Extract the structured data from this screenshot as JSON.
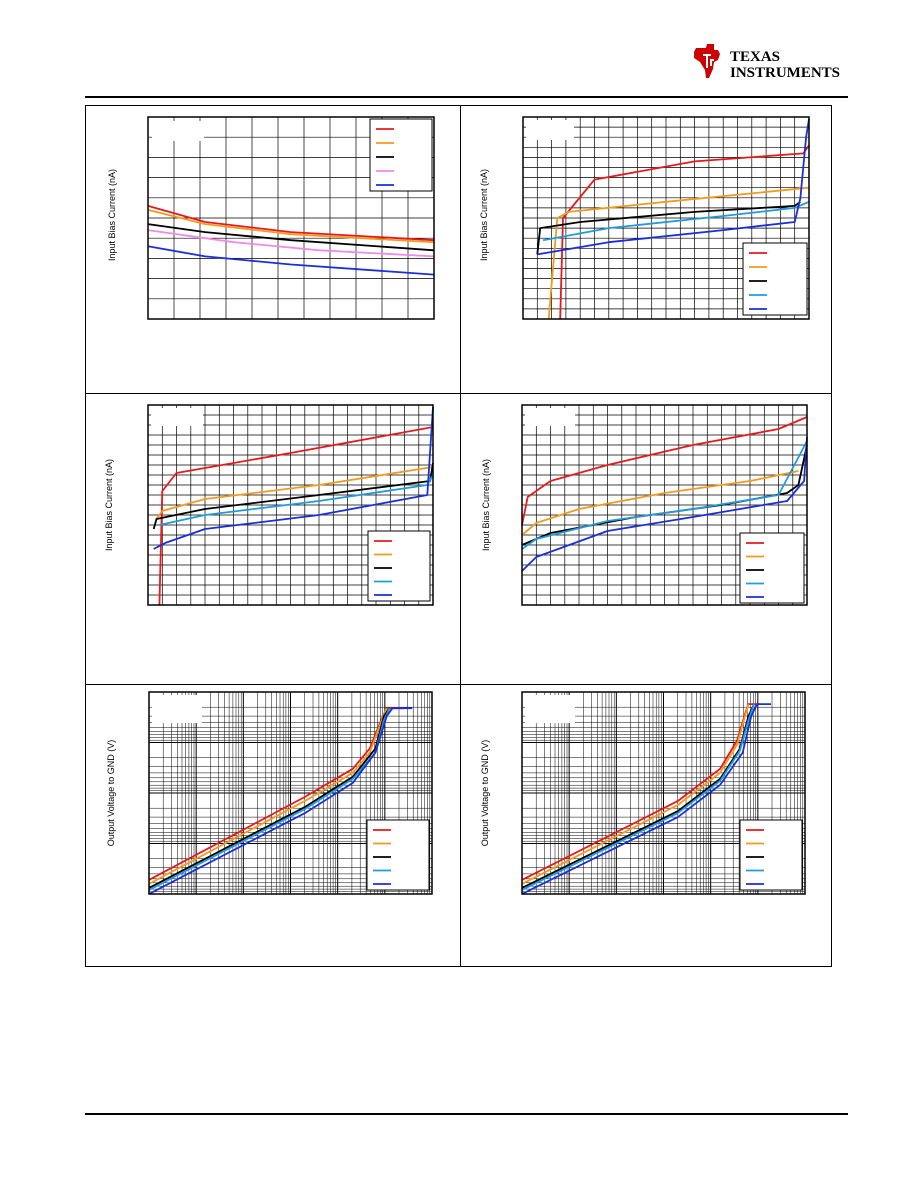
{
  "brand": {
    "name_line1": "TEXAS",
    "name_line2": "INSTRUMENTS",
    "color": "#cc0000"
  },
  "colors": {
    "red": "#e8191b",
    "orange": "#f39a1e",
    "black": "#000000",
    "pink": "#f08ae6",
    "lightblue": "#1f9be0",
    "blue": "#1a2fd8"
  },
  "charts": {
    "c1": {
      "ylabel": "Input Bias Current (nA)"
    },
    "c2": {
      "ylabel": "Input Bias Current (nA)"
    },
    "c3": {
      "ylabel": "Input Bias Current (nA)"
    },
    "c4": {
      "ylabel": "Input Bias Current (nA)"
    },
    "c5": {
      "ylabel": "Output Voltage to GND (V)"
    },
    "c6": {
      "ylabel": "Output Voltage to GND (V)"
    }
  },
  "chart_data": [
    {
      "type": "line",
      "ylabel": "Input Bias Current (nA)",
      "grid": true,
      "legend_position": "top-right",
      "x_domain": [
        0,
        1
      ],
      "y_domain": [
        0,
        1
      ],
      "series": [
        {
          "color": "red",
          "points": [
            [
              0,
              0.56
            ],
            [
              0.2,
              0.48
            ],
            [
              0.5,
              0.43
            ],
            [
              1,
              0.39
            ]
          ]
        },
        {
          "color": "orange",
          "points": [
            [
              0,
              0.54
            ],
            [
              0.2,
              0.47
            ],
            [
              0.5,
              0.42
            ],
            [
              1,
              0.38
            ]
          ]
        },
        {
          "color": "black",
          "points": [
            [
              0,
              0.47
            ],
            [
              0.2,
              0.43
            ],
            [
              0.5,
              0.39
            ],
            [
              1,
              0.34
            ]
          ]
        },
        {
          "color": "pink",
          "points": [
            [
              0,
              0.44
            ],
            [
              0.3,
              0.38
            ],
            [
              0.6,
              0.34
            ],
            [
              1,
              0.31
            ]
          ]
        },
        {
          "color": "blue",
          "points": [
            [
              0,
              0.36
            ],
            [
              0.2,
              0.31
            ],
            [
              0.5,
              0.27
            ],
            [
              1,
              0.22
            ]
          ]
        }
      ]
    },
    {
      "type": "line",
      "ylabel": "Input Bias Current (nA)",
      "grid": true,
      "legend_position": "bottom-right",
      "x_domain": [
        0,
        1
      ],
      "y_domain": [
        0,
        1
      ],
      "series": [
        {
          "color": "red",
          "points": [
            [
              0.13,
              0
            ],
            [
              0.14,
              0.5
            ],
            [
              0.25,
              0.69
            ],
            [
              0.6,
              0.78
            ],
            [
              0.98,
              0.82
            ],
            [
              1,
              0.86
            ]
          ]
        },
        {
          "color": "orange",
          "points": [
            [
              0.09,
              0
            ],
            [
              0.12,
              0.5
            ],
            [
              0.16,
              0.53
            ],
            [
              0.5,
              0.58
            ],
            [
              1,
              0.65
            ]
          ]
        },
        {
          "color": "black",
          "points": [
            [
              0.05,
              0.32
            ],
            [
              0.06,
              0.45
            ],
            [
              0.2,
              0.48
            ],
            [
              0.6,
              0.53
            ],
            [
              0.95,
              0.56
            ],
            [
              0.97,
              0.58
            ]
          ]
        },
        {
          "color": "lightblue",
          "points": [
            [
              0.07,
              0.39
            ],
            [
              0.3,
              0.45
            ],
            [
              0.7,
              0.51
            ],
            [
              0.95,
              0.55
            ],
            [
              1,
              0.58
            ]
          ]
        },
        {
          "color": "blue",
          "points": [
            [
              0.05,
              0.32
            ],
            [
              0.3,
              0.38
            ],
            [
              0.7,
              0.44
            ],
            [
              0.95,
              0.48
            ],
            [
              0.97,
              0.6
            ],
            [
              0.99,
              0.9
            ],
            [
              1,
              0.99
            ]
          ]
        }
      ]
    },
    {
      "type": "line",
      "ylabel": "Input Bias Current (nA)",
      "grid": true,
      "legend_position": "bottom-right",
      "x_domain": [
        0,
        1
      ],
      "y_domain": [
        0,
        1
      ],
      "series": [
        {
          "color": "red",
          "points": [
            [
              0.04,
              0
            ],
            [
              0.05,
              0.57
            ],
            [
              0.1,
              0.66
            ],
            [
              0.5,
              0.76
            ],
            [
              1,
              0.89
            ]
          ]
        },
        {
          "color": "orange",
          "points": [
            [
              0.03,
              0.43
            ],
            [
              0.05,
              0.47
            ],
            [
              0.2,
              0.53
            ],
            [
              0.6,
              0.6
            ],
            [
              1,
              0.69
            ]
          ]
        },
        {
          "color": "black",
          "points": [
            [
              0.02,
              0.38
            ],
            [
              0.03,
              0.43
            ],
            [
              0.2,
              0.48
            ],
            [
              0.6,
              0.55
            ],
            [
              0.99,
              0.62
            ],
            [
              1,
              0.71
            ]
          ]
        },
        {
          "color": "lightblue",
          "points": [
            [
              0.04,
              0.4
            ],
            [
              0.2,
              0.45
            ],
            [
              0.6,
              0.52
            ],
            [
              0.98,
              0.6
            ],
            [
              1,
              0.65
            ]
          ]
        },
        {
          "color": "blue",
          "points": [
            [
              0.02,
              0.28
            ],
            [
              0.06,
              0.31
            ],
            [
              0.2,
              0.38
            ],
            [
              0.6,
              0.45
            ],
            [
              0.98,
              0.55
            ],
            [
              1,
              0.99
            ]
          ]
        }
      ]
    },
    {
      "type": "line",
      "ylabel": "Input Bias Current (nA)",
      "grid": true,
      "legend_position": "bottom-right",
      "x_domain": [
        0,
        1
      ],
      "y_domain": [
        0,
        1
      ],
      "series": [
        {
          "color": "red",
          "points": [
            [
              0,
              0.4
            ],
            [
              0.02,
              0.54
            ],
            [
              0.1,
              0.62
            ],
            [
              0.3,
              0.7
            ],
            [
              0.6,
              0.8
            ],
            [
              0.9,
              0.88
            ],
            [
              1,
              0.94
            ]
          ]
        },
        {
          "color": "orange",
          "points": [
            [
              0,
              0.35
            ],
            [
              0.05,
              0.41
            ],
            [
              0.2,
              0.48
            ],
            [
              0.5,
              0.56
            ],
            [
              0.8,
              0.62
            ],
            [
              0.97,
              0.67
            ]
          ]
        },
        {
          "color": "black",
          "points": [
            [
              0,
              0.3
            ],
            [
              0.1,
              0.36
            ],
            [
              0.4,
              0.44
            ],
            [
              0.7,
              0.5
            ],
            [
              0.93,
              0.56
            ],
            [
              0.97,
              0.6
            ],
            [
              1,
              0.8
            ]
          ]
        },
        {
          "color": "lightblue",
          "points": [
            [
              0,
              0.28
            ],
            [
              0.05,
              0.33
            ],
            [
              0.3,
              0.42
            ],
            [
              0.6,
              0.48
            ],
            [
              0.9,
              0.55
            ],
            [
              1,
              0.82
            ]
          ]
        },
        {
          "color": "blue",
          "points": [
            [
              0,
              0.17
            ],
            [
              0.05,
              0.24
            ],
            [
              0.3,
              0.37
            ],
            [
              0.6,
              0.44
            ],
            [
              0.93,
              0.52
            ],
            [
              0.99,
              0.62
            ],
            [
              1,
              0.84
            ]
          ]
        }
      ]
    },
    {
      "type": "line",
      "ylabel": "Output Voltage to GND (V)",
      "grid": true,
      "log_x": true,
      "log_y": true,
      "legend_position": "bottom-right",
      "x_domain": [
        0,
        1
      ],
      "y_domain": [
        0,
        1
      ],
      "series": [
        {
          "color": "red",
          "points": [
            [
              0,
              0.07
            ],
            [
              0.55,
              0.48
            ],
            [
              0.72,
              0.62
            ],
            [
              0.78,
              0.72
            ],
            [
              0.82,
              0.86
            ],
            [
              0.84,
              0.92
            ],
            [
              0.9,
              0.92
            ]
          ]
        },
        {
          "color": "orange",
          "points": [
            [
              0,
              0.05
            ],
            [
              0.55,
              0.46
            ],
            [
              0.72,
              0.6
            ],
            [
              0.78,
              0.7
            ],
            [
              0.82,
              0.85
            ],
            [
              0.84,
              0.92
            ]
          ]
        },
        {
          "color": "black",
          "points": [
            [
              0,
              0.03
            ],
            [
              0.55,
              0.43
            ],
            [
              0.72,
              0.58
            ],
            [
              0.8,
              0.72
            ],
            [
              0.83,
              0.88
            ],
            [
              0.85,
              0.92
            ]
          ]
        },
        {
          "color": "lightblue",
          "points": [
            [
              0,
              0.02
            ],
            [
              0.55,
              0.42
            ],
            [
              0.72,
              0.57
            ],
            [
              0.8,
              0.7
            ],
            [
              0.83,
              0.86
            ],
            [
              0.85,
              0.92
            ]
          ]
        },
        {
          "color": "blue",
          "points": [
            [
              0,
              0
            ],
            [
              0.55,
              0.4
            ],
            [
              0.72,
              0.55
            ],
            [
              0.8,
              0.7
            ],
            [
              0.84,
              0.88
            ],
            [
              0.86,
              0.92
            ],
            [
              0.93,
              0.92
            ]
          ]
        }
      ]
    },
    {
      "type": "line",
      "ylabel": "Output Voltage to GND (V)",
      "grid": true,
      "log_x": true,
      "log_y": true,
      "legend_position": "bottom-right",
      "x_domain": [
        0,
        1
      ],
      "y_domain": [
        0,
        1
      ],
      "series": [
        {
          "color": "red",
          "points": [
            [
              0,
              0.07
            ],
            [
              0.55,
              0.46
            ],
            [
              0.7,
              0.62
            ],
            [
              0.76,
              0.76
            ],
            [
              0.79,
              0.9
            ],
            [
              0.8,
              0.94
            ],
            [
              0.84,
              0.94
            ]
          ]
        },
        {
          "color": "orange",
          "points": [
            [
              0,
              0.05
            ],
            [
              0.55,
              0.44
            ],
            [
              0.7,
              0.6
            ],
            [
              0.76,
              0.74
            ],
            [
              0.79,
              0.89
            ],
            [
              0.8,
              0.94
            ]
          ]
        },
        {
          "color": "black",
          "points": [
            [
              0,
              0.03
            ],
            [
              0.55,
              0.41
            ],
            [
              0.7,
              0.57
            ],
            [
              0.77,
              0.72
            ],
            [
              0.8,
              0.88
            ],
            [
              0.82,
              0.94
            ]
          ]
        },
        {
          "color": "lightblue",
          "points": [
            [
              0,
              0.02
            ],
            [
              0.55,
              0.4
            ],
            [
              0.7,
              0.56
            ],
            [
              0.77,
              0.71
            ],
            [
              0.8,
              0.86
            ],
            [
              0.82,
              0.94
            ]
          ]
        },
        {
          "color": "blue",
          "points": [
            [
              0,
              0
            ],
            [
              0.55,
              0.38
            ],
            [
              0.7,
              0.54
            ],
            [
              0.78,
              0.7
            ],
            [
              0.81,
              0.88
            ],
            [
              0.83,
              0.94
            ],
            [
              0.88,
              0.94
            ]
          ]
        }
      ]
    }
  ]
}
